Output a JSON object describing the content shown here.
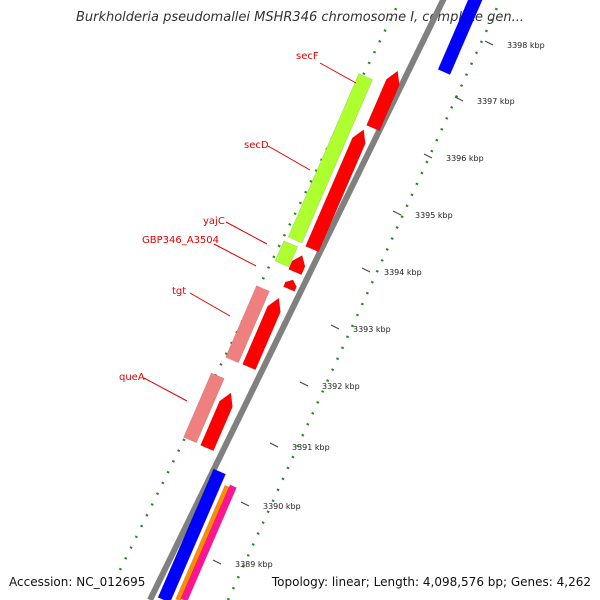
{
  "title": "Burkholderia pseudomallei MSHR346 chromosome I, complete gen...",
  "footer": {
    "accession": "Accession: NC_012695",
    "summary": "Topology: linear; Length: 4,098,576 bp; Genes: 4,262"
  },
  "ruler": {
    "labels": [
      "3398 kbp",
      "3397 kbp",
      "3396 kbp",
      "3395 kbp",
      "3394 kbp",
      "3393 kbp",
      "3392 kbp",
      "3391 kbp",
      "3390 kbp",
      "3389 kbp"
    ]
  },
  "genes": [
    {
      "label": "secF",
      "color": "#adff2f"
    },
    {
      "label": "secD",
      "color": "#adff2f"
    },
    {
      "label": "yajC",
      "color": "#adff2f"
    },
    {
      "label": "GBP346_A3504",
      "color": "#ff0000"
    },
    {
      "label": "tgt",
      "color": "#f08080"
    },
    {
      "label": "queA",
      "color": "#f08080"
    }
  ],
  "colors": {
    "backbone": "#808080",
    "forward_cds": "#adff2f",
    "reverse_cds": "#ff0000",
    "light_cds": "#f08080",
    "outer_blue": "#0000ff",
    "orange": "#ff8c00",
    "magenta": "#ff1493",
    "dots": "#228b22",
    "label_red": "#e00000"
  }
}
